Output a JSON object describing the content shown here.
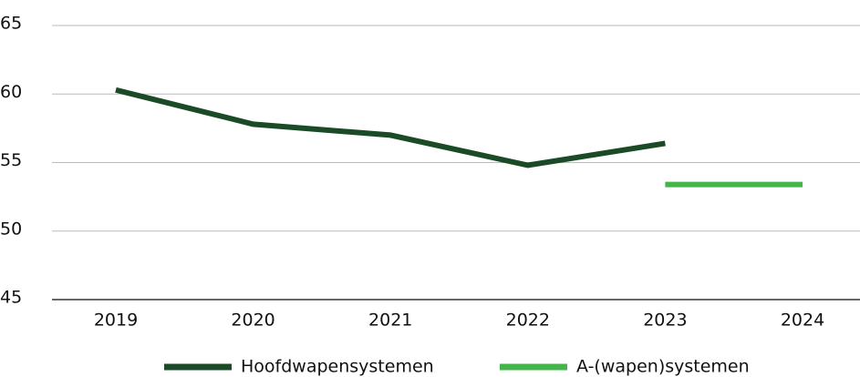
{
  "chart_data": {
    "type": "line",
    "categories": [
      "2019",
      "2020",
      "2021",
      "2022",
      "2023",
      "2024"
    ],
    "series": [
      {
        "name": "Hoofdwapensystemen",
        "color": "#1b4a26",
        "values": [
          60.3,
          57.8,
          57.0,
          54.8,
          56.4,
          null
        ]
      },
      {
        "name": "A-(wapen)systemen",
        "color": "#44b549",
        "values": [
          null,
          null,
          null,
          null,
          53.4,
          53.4
        ]
      }
    ],
    "ylim": [
      45,
      65
    ],
    "yticks": [
      45,
      50,
      55,
      60,
      65
    ],
    "grid": true,
    "legend": "bottom"
  }
}
